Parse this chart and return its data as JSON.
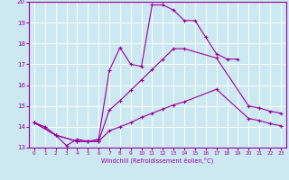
{
  "bg_color": "#cce8f0",
  "line_color": "#990099",
  "grid_color": "#ffffff",
  "xlim": [
    -0.5,
    23.5
  ],
  "ylim": [
    13,
    20
  ],
  "xticks": [
    0,
    1,
    2,
    3,
    4,
    5,
    6,
    7,
    8,
    9,
    10,
    11,
    12,
    13,
    14,
    15,
    16,
    17,
    18,
    19,
    20,
    21,
    22,
    23
  ],
  "yticks": [
    13,
    14,
    15,
    16,
    17,
    18,
    19,
    20
  ],
  "xlabel": "Windchill (Refroidissement éolien,°C)",
  "line1_x": [
    0,
    1,
    2,
    3,
    4,
    5,
    6,
    7,
    8,
    9,
    10,
    11,
    12,
    13,
    14,
    15,
    16,
    17,
    18,
    19
  ],
  "line1_y": [
    14.2,
    14.0,
    13.6,
    13.1,
    13.4,
    13.3,
    13.4,
    16.7,
    17.8,
    17.0,
    16.9,
    19.85,
    19.85,
    19.6,
    19.1,
    19.1,
    18.3,
    17.5,
    17.25,
    17.25
  ],
  "line2_x": [
    0,
    2,
    4,
    5,
    6,
    7,
    8,
    9,
    10,
    11,
    12,
    13,
    14,
    17,
    20,
    21,
    22,
    23
  ],
  "line2_y": [
    14.2,
    13.6,
    13.3,
    13.3,
    13.3,
    14.8,
    15.25,
    15.75,
    16.25,
    16.75,
    17.25,
    17.75,
    17.75,
    17.3,
    15.0,
    14.9,
    14.75,
    14.65
  ],
  "line3_x": [
    0,
    2,
    4,
    5,
    6,
    7,
    8,
    9,
    10,
    11,
    12,
    13,
    14,
    17,
    20,
    21,
    22,
    23
  ],
  "line3_y": [
    14.2,
    13.6,
    13.3,
    13.3,
    13.3,
    13.8,
    14.0,
    14.2,
    14.45,
    14.65,
    14.85,
    15.05,
    15.2,
    15.8,
    14.4,
    14.3,
    14.15,
    14.05
  ]
}
